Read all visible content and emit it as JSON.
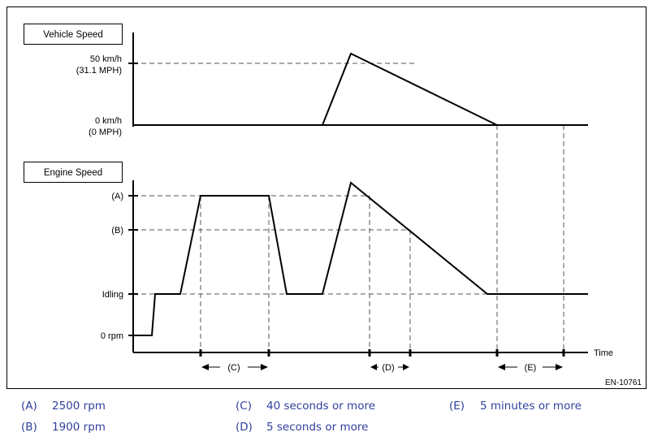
{
  "figure": {
    "vehicle_speed_label": "Vehicle Speed",
    "engine_speed_label": "Engine Speed",
    "vs_tick_50_line1": "50 km/h",
    "vs_tick_50_line2": "(31.1 MPH)",
    "vs_tick_0_line1": "0 km/h",
    "vs_tick_0_line2": "(0 MPH)",
    "es_tick_a": "(A)",
    "es_tick_b": "(B)",
    "es_tick_idling": "Idling",
    "es_tick_0": "0 rpm",
    "time_label": "Time",
    "interval_c": "(C)",
    "interval_d": "(D)",
    "interval_e": "(E)",
    "figure_id": "EN-10761"
  },
  "legend": {
    "a_key": "(A)",
    "a_value": "2500 rpm",
    "b_key": "(B)",
    "b_value": "1900 rpm",
    "c_key": "(C)",
    "c_value": "40 seconds or more",
    "d_key": "(D)",
    "d_value": "5 seconds or more",
    "e_key": "(E)",
    "e_value": "5 minutes or more"
  },
  "colors": {
    "legend_text": "#2f3f9e",
    "line": "#000000",
    "dashed": "#555555"
  }
}
